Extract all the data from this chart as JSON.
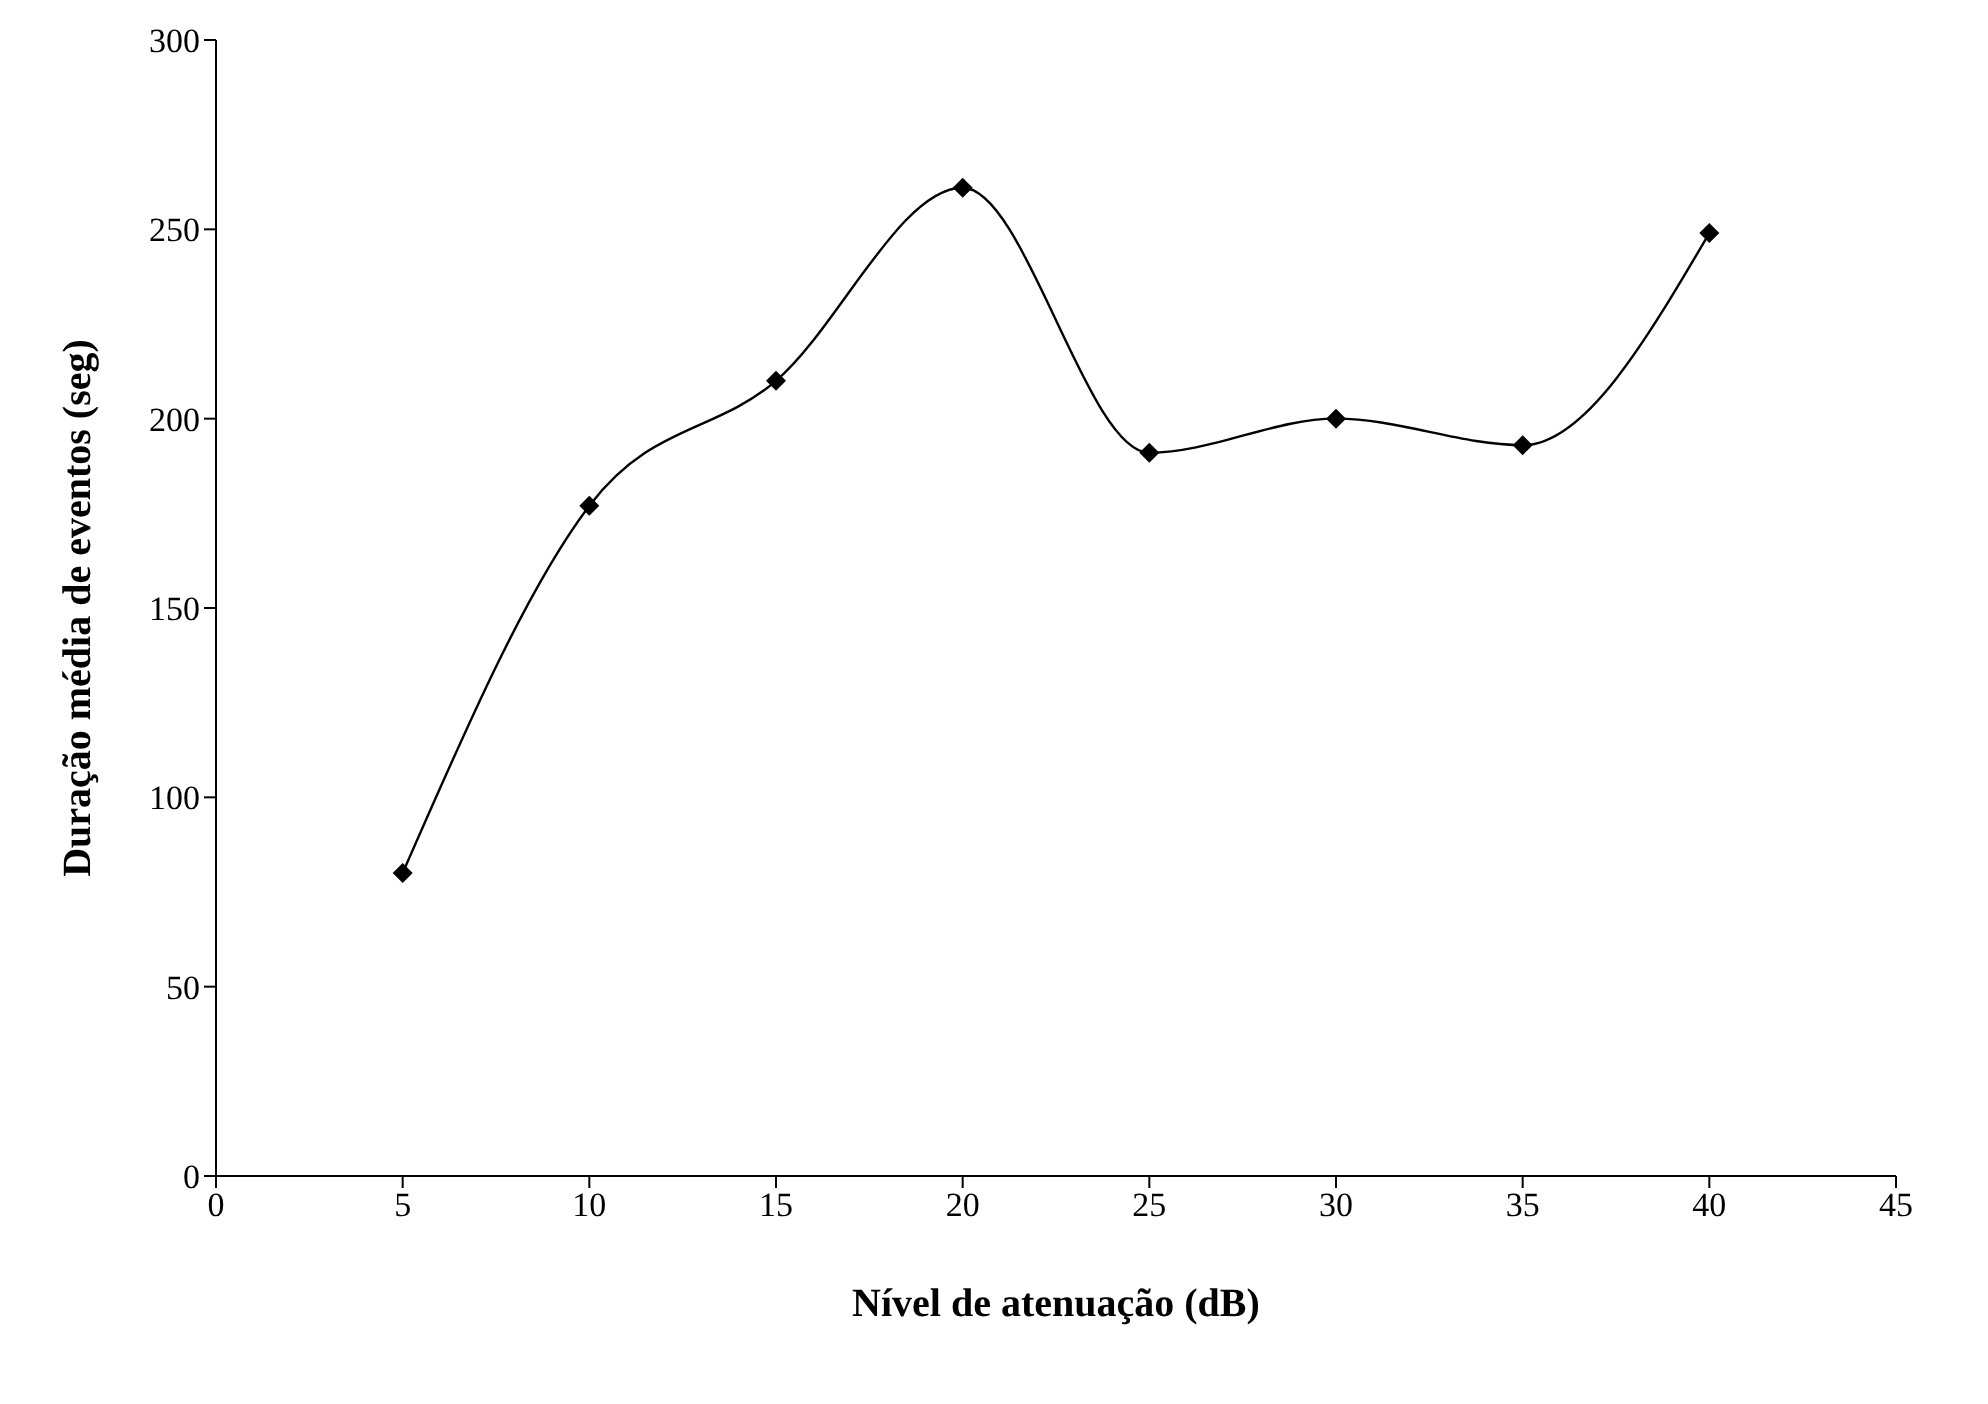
{
  "chart_data": {
    "type": "line",
    "xlabel": "Nível de atenuação (dB)",
    "ylabel": "Duração média de eventos (seg)",
    "x": [
      5,
      10,
      15,
      20,
      25,
      30,
      35,
      40
    ],
    "series": [
      {
        "color": "#000000",
        "values": [
          80,
          177,
          210,
          261,
          191,
          200,
          193,
          249
        ]
      }
    ],
    "xlim": [
      0,
      45
    ],
    "xticks": [
      0,
      5,
      10,
      15,
      20,
      25,
      30,
      35,
      40,
      45
    ],
    "ylim": [
      0,
      300
    ],
    "yticks": [
      0,
      50,
      100,
      150,
      200,
      250,
      300
    ],
    "grid": false,
    "legend": false,
    "marker": "diamond",
    "line_style": "solid"
  }
}
